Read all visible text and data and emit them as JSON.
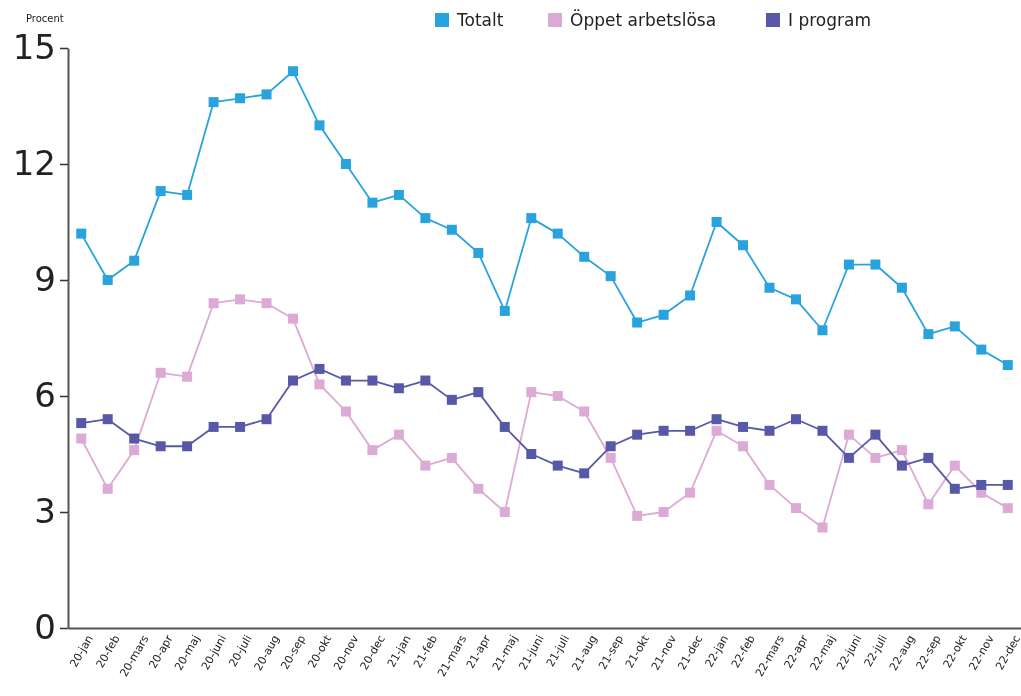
{
  "chart_data": {
    "type": "line",
    "ylabel": "Procent",
    "categories": [
      "20-jan",
      "20-feb",
      "20-mars",
      "20-apr",
      "20-maj",
      "20-juni",
      "20-juli",
      "20-aug",
      "20-sep",
      "20-okt",
      "20-nov",
      "20-dec",
      "21-jan",
      "21-feb",
      "21-mars",
      "21-apr",
      "21-maj",
      "21-juni",
      "21-juli",
      "21-aug",
      "21-sep",
      "21-okt",
      "21-nov",
      "21-dec",
      "22-jan",
      "22-feb",
      "22-mars",
      "22-apr",
      "22-maj",
      "22-juni",
      "22-juli",
      "22-aug",
      "22-sep",
      "22-okt",
      "22-nov",
      "22-dec"
    ],
    "series": [
      {
        "name": "Totalt",
        "color": "#29a3dd",
        "values": [
          10.2,
          9.0,
          9.5,
          11.3,
          11.2,
          13.6,
          13.7,
          13.8,
          14.4,
          13.0,
          12.0,
          11.0,
          11.2,
          10.6,
          10.3,
          9.7,
          8.2,
          10.6,
          10.2,
          9.6,
          9.1,
          7.9,
          8.1,
          8.6,
          10.5,
          9.9,
          8.8,
          8.5,
          7.7,
          9.4,
          9.4,
          8.8,
          7.6,
          7.8,
          7.2,
          6.8
        ]
      },
      {
        "name": "Öppet arbetslösa",
        "color": "#dcaad4",
        "values": [
          4.9,
          3.6,
          4.6,
          6.6,
          6.5,
          8.4,
          8.5,
          8.4,
          8.0,
          6.3,
          5.6,
          4.6,
          5.0,
          4.2,
          4.4,
          3.6,
          3.0,
          6.1,
          6.0,
          5.6,
          4.4,
          2.9,
          3.0,
          3.5,
          5.1,
          4.7,
          3.7,
          3.1,
          2.6,
          5.0,
          4.4,
          4.6,
          3.2,
          4.2,
          3.5,
          3.1
        ]
      },
      {
        "name": "I program",
        "color": "#5858a8",
        "values": [
          5.3,
          5.4,
          4.9,
          4.7,
          4.7,
          5.2,
          5.2,
          5.4,
          6.4,
          6.7,
          6.4,
          6.4,
          6.2,
          6.4,
          5.9,
          6.1,
          5.2,
          4.5,
          4.2,
          4.0,
          4.7,
          5.0,
          5.1,
          5.1,
          5.4,
          5.2,
          5.1,
          5.4,
          5.1,
          4.4,
          5.0,
          4.2,
          4.4,
          3.6,
          3.7,
          3.7
        ]
      }
    ],
    "ylim": [
      0,
      15
    ],
    "yticks": [
      0,
      3,
      6,
      9,
      12,
      15
    ],
    "grid": false,
    "legend": "top",
    "marker": "square",
    "line_style": "solid"
  }
}
